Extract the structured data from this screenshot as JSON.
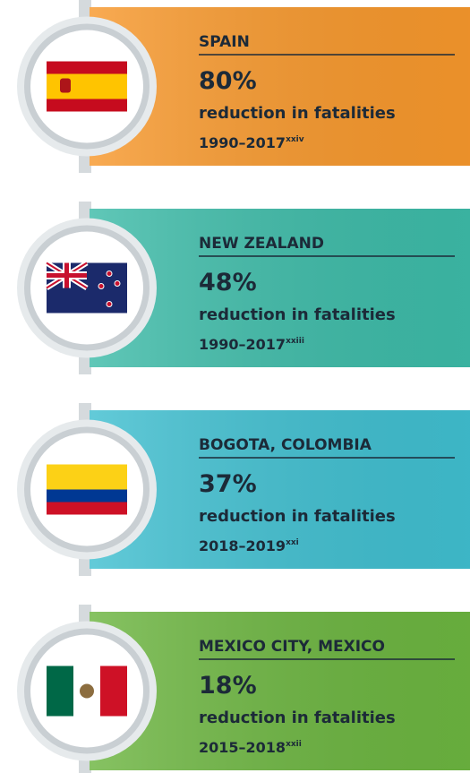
{
  "items": [
    {
      "name": "SPAIN",
      "figure": "80%",
      "description": "reduction in fatalities",
      "period": "1990–2017",
      "note": "xxiv",
      "color": "#f7982c"
    },
    {
      "name": "NEW ZEALAND",
      "figure": "48%",
      "description": "reduction in fatalities",
      "period": "1990–2017",
      "note": "xxiii",
      "color": "#3dbba8"
    },
    {
      "name": "BOGOTA, COLOMBIA",
      "figure": "37%",
      "description": "reduction in fatalities",
      "period": "2018–2019",
      "note": "xxi",
      "color": "#40bfd0"
    },
    {
      "name": "MEXICO CITY, MEXICO",
      "figure": "18%",
      "description": "reduction in fatalities",
      "period": "2015–2018",
      "note": "xxii",
      "color": "#6cb540"
    }
  ]
}
